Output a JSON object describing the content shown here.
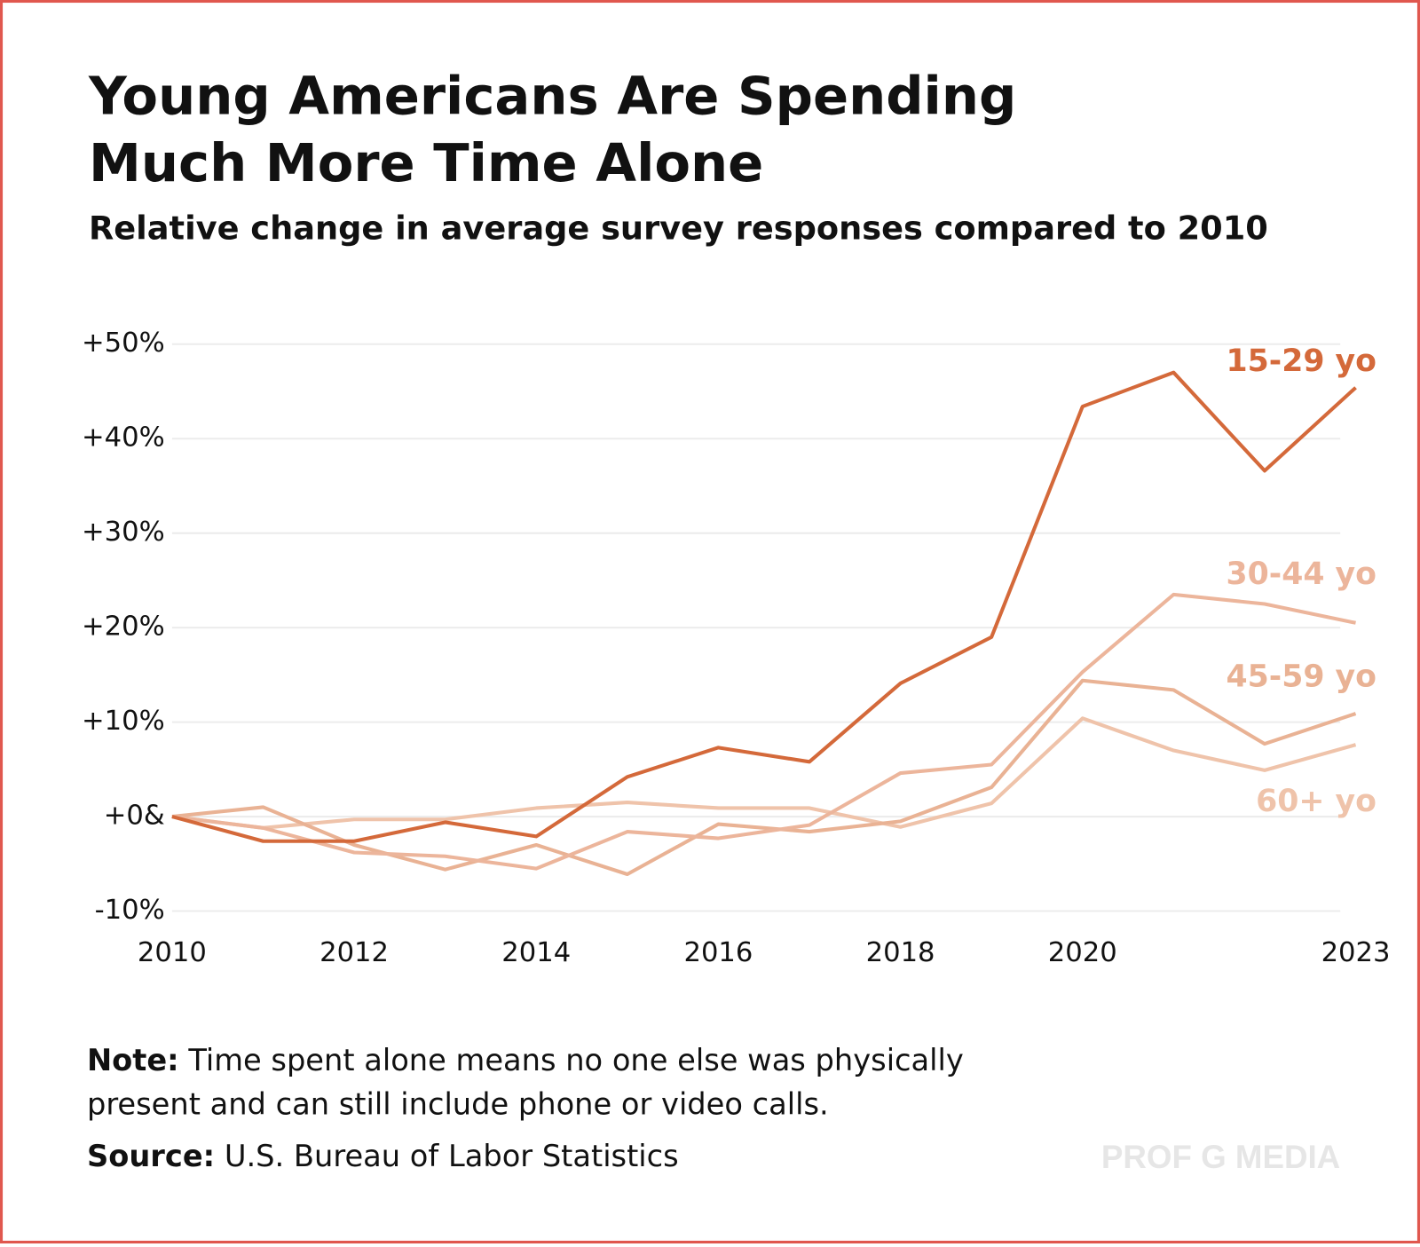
{
  "chart_data": {
    "type": "line",
    "title_lines": [
      "Young Americans Are Spending",
      "Much More Time Alone"
    ],
    "subtitle": "Relative change in average survey responses compared to 2010",
    "x": [
      2010,
      2011,
      2012,
      2013,
      2014,
      2015,
      2016,
      2017,
      2018,
      2019,
      2020,
      2021,
      2022,
      2023
    ],
    "xlim": [
      2010,
      2023
    ],
    "xticks": [
      2010,
      2012,
      2014,
      2016,
      2018,
      2020,
      2023
    ],
    "ylim": [
      -10,
      50
    ],
    "yticks": [
      {
        "value": -10,
        "label": "-10%"
      },
      {
        "value": 0,
        "label": "+0&"
      },
      {
        "value": 10,
        "label": "+10%"
      },
      {
        "value": 20,
        "label": "+20%"
      },
      {
        "value": 30,
        "label": "+30%"
      },
      {
        "value": 40,
        "label": "+40%"
      },
      {
        "value": 50,
        "label": "+50%"
      }
    ],
    "grid": true,
    "series": [
      {
        "name": "15-29 yo",
        "color": "#d4693a",
        "values": [
          0,
          -2.6,
          -2.6,
          -0.6,
          -2.1,
          4.2,
          7.3,
          5.8,
          14.1,
          19.0,
          43.4,
          47.0,
          36.6,
          45.4
        ]
      },
      {
        "name": "30-44 yo",
        "color": "#ecb59b",
        "values": [
          0,
          -1.2,
          -3.8,
          -4.2,
          -5.5,
          -1.6,
          -2.3,
          -0.9,
          4.6,
          5.5,
          15.3,
          23.5,
          22.5,
          20.5
        ]
      },
      {
        "name": "45-59 yo",
        "color": "#e9b294",
        "values": [
          0,
          1.0,
          -3.0,
          -5.6,
          -3.0,
          -6.1,
          -0.8,
          -1.6,
          -0.5,
          3.1,
          14.4,
          13.4,
          7.7,
          10.9
        ]
      },
      {
        "name": "60+ yo",
        "color": "#efc3aa",
        "values": [
          0,
          -1.2,
          -0.3,
          -0.3,
          0.9,
          1.5,
          0.9,
          0.9,
          -1.1,
          1.4,
          10.4,
          7.0,
          4.9,
          7.6
        ]
      }
    ],
    "note": {
      "label": "Note:",
      "lines": [
        "Time spent alone means no one else was physically",
        "present and can still include phone or video calls."
      ]
    },
    "source": {
      "label": "Source:",
      "text": "U.S. Bureau of Labor Statistics"
    },
    "watermark": "PROF G MEDIA"
  }
}
